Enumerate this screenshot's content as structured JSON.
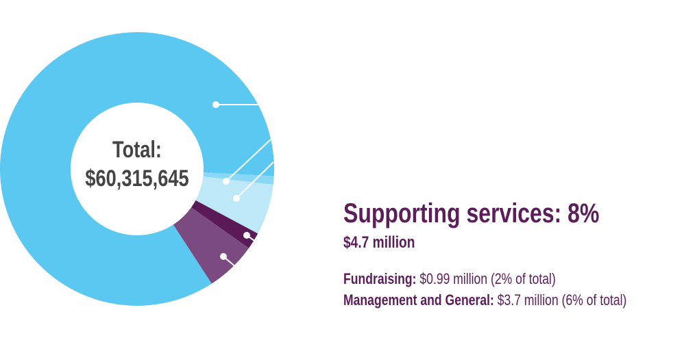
{
  "chart_data": {
    "type": "pie",
    "values": [
      85,
      1,
      6,
      2,
      6
    ],
    "colors": [
      "#5bc8f1",
      "#8ad8f6",
      "#bde8f8",
      "#5a1a58",
      "#7a4a80"
    ],
    "center_label": "Total:",
    "center_value": "$60,315,645"
  },
  "summary": {
    "title": "Supporting services: 8%",
    "amount": "$4.7 million",
    "items": [
      {
        "label": "Fundraising:",
        "text": "$0.99 million (2% of total)"
      },
      {
        "label": "Management and General:",
        "text": "$3.7 million (6% of total)"
      }
    ]
  }
}
